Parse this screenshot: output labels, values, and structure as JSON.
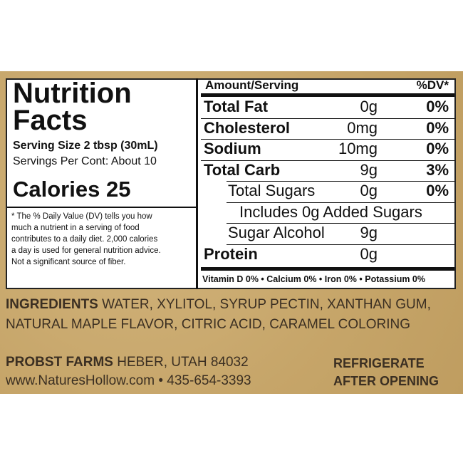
{
  "header": {
    "title": "Nutrition Facts",
    "serving_size": "Serving Size 2 tbsp (30mL)",
    "servings": "Servings Per Cont: About 10",
    "calories": "Calories 25",
    "footnote": [
      "* The % Daily Value (DV) tells you how",
      "much a nutrient in a serving of food",
      "contributes to a daily diet. 2,000 calories",
      "a day is used for general nutrition advice.",
      "Not a significant source of fiber."
    ]
  },
  "table": {
    "amount_header": "Amount/Serving",
    "dv_header": "%DV*",
    "rows": [
      {
        "name": "Total Fat",
        "amount": "0g",
        "dv": "0%"
      },
      {
        "name": "Cholesterol",
        "amount": "0mg",
        "dv": "0%"
      },
      {
        "name": "Sodium",
        "amount": "10mg",
        "dv": "0%"
      },
      {
        "name": "Total Carb",
        "amount": "9g",
        "dv": "3%"
      },
      {
        "name": "Total Sugars",
        "amount": "0g",
        "dv": "0%"
      },
      {
        "name": "Includes 0g Added Sugars"
      },
      {
        "name": "Sugar Alcohol",
        "amount": "9g"
      },
      {
        "name": "Protein",
        "amount": "0g"
      }
    ],
    "vitamins": "Vitamin D 0% • Calcium 0% • Iron 0% • Potassium 0%"
  },
  "ingredients": {
    "label": "INGREDIENTS",
    "text": "WATER, XYLITOL, SYRUP PECTIN, XANTHAN GUM, NATURAL MAPLE FLAVOR, CITRIC ACID, CARAMEL COLORING"
  },
  "footer": {
    "company": "PROBST FARMS",
    "address": "HEBER, UTAH 84032",
    "website": "www.NaturesHollow.com",
    "separator": "•",
    "phone": "435-654-3393",
    "storage": [
      "REFRIGERATE",
      "AFTER OPENING"
    ]
  }
}
